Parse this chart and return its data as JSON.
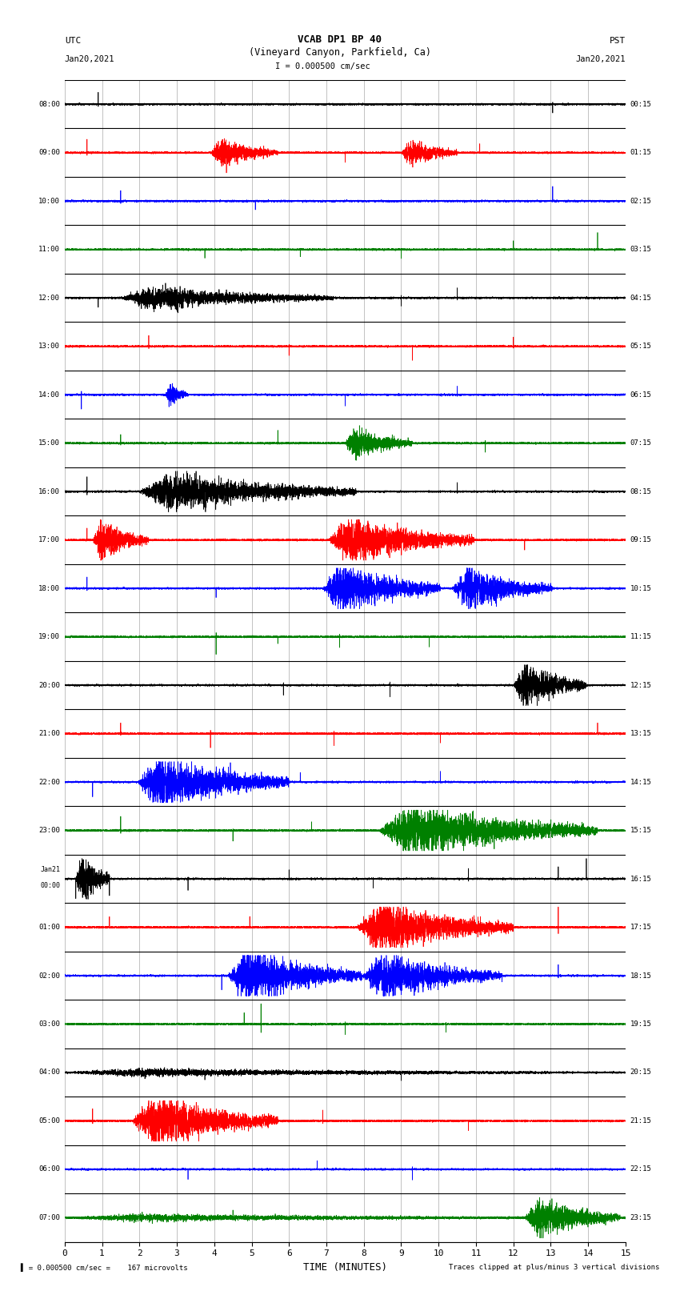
{
  "title_line1": "VCAB DP1 BP 40",
  "title_line2": "(Vineyard Canyon, Parkfield, Ca)",
  "scale_text": "I = 0.000500 cm/sec",
  "utc_label": "UTC",
  "utc_date": "Jan20,2021",
  "pst_label": "PST",
  "pst_date": "Jan20,2021",
  "xlabel": "TIME (MINUTES)",
  "footer_left": "= 0.000500 cm/sec =    167 microvolts",
  "footer_right": "Traces clipped at plus/minus 3 vertical divisions",
  "background_color": "#ffffff",
  "grid_color": "#aaaaaa",
  "trace_labels_left": [
    "08:00",
    "09:00",
    "10:00",
    "11:00",
    "12:00",
    "13:00",
    "14:00",
    "15:00",
    "16:00",
    "17:00",
    "18:00",
    "19:00",
    "20:00",
    "21:00",
    "22:00",
    "23:00",
    "Jan21\n00:00",
    "01:00",
    "02:00",
    "03:00",
    "04:00",
    "05:00",
    "06:00",
    "07:00"
  ],
  "trace_labels_right": [
    "00:15",
    "01:15",
    "02:15",
    "03:15",
    "04:15",
    "05:15",
    "06:15",
    "07:15",
    "08:15",
    "09:15",
    "10:15",
    "11:15",
    "12:15",
    "13:15",
    "14:15",
    "15:15",
    "16:15",
    "17:15",
    "18:15",
    "19:15",
    "20:15",
    "21:15",
    "22:15",
    "23:15"
  ],
  "rows": 24,
  "seed": 12345
}
